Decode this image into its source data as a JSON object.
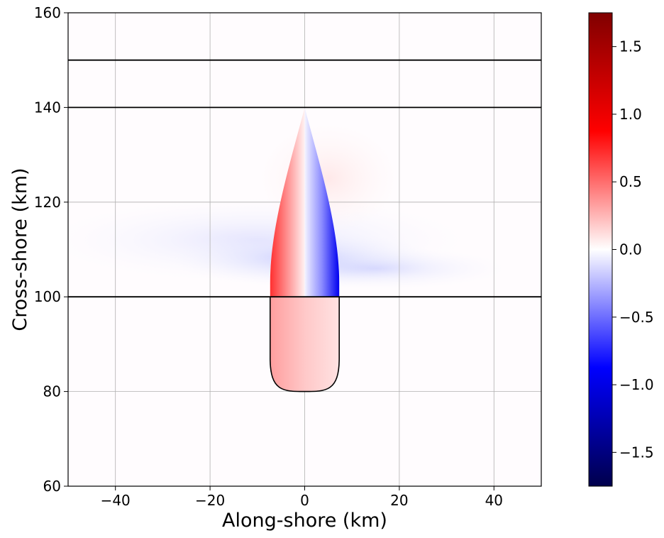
{
  "chart_data": {
    "type": "heatmap",
    "title": "",
    "xlabel": "Along-shore (km)",
    "ylabel": "Cross-shore (km)",
    "xlim": [
      -50,
      50
    ],
    "ylim": [
      60,
      160
    ],
    "x_ticks": [
      {
        "value": -40,
        "label": "−40"
      },
      {
        "value": -20,
        "label": "−20"
      },
      {
        "value": 0,
        "label": "0"
      },
      {
        "value": 20,
        "label": "20"
      },
      {
        "value": 40,
        "label": "40"
      }
    ],
    "y_ticks": [
      {
        "value": 60,
        "label": "60"
      },
      {
        "value": 80,
        "label": "80"
      },
      {
        "value": 100,
        "label": "100"
      },
      {
        "value": 120,
        "label": "120"
      },
      {
        "value": 140,
        "label": "140"
      },
      {
        "value": 160,
        "label": "160"
      }
    ],
    "grid": true,
    "horizontal_lines": [
      100,
      140,
      150
    ],
    "colormap": "seismic",
    "colorbar": {
      "range": [
        -1.75,
        1.75
      ],
      "ticks": [
        {
          "value": 1.5,
          "label": "1.5"
        },
        {
          "value": 1.0,
          "label": "1.0"
        },
        {
          "value": 0.5,
          "label": "0.5"
        },
        {
          "value": 0.0,
          "label": "0.0"
        },
        {
          "value": -0.5,
          "label": "−0.5"
        },
        {
          "value": -1.0,
          "label": "−1.0"
        },
        {
          "value": -1.5,
          "label": "−1.5"
        }
      ]
    },
    "body_outline": {
      "half_width": 7.3,
      "tip_y": 140,
      "shoulder_y": 103,
      "base_y": 80,
      "corner_y": 87
    },
    "colors": {
      "positive": "#ff0000",
      "negative": "#0000ff",
      "zero": "#ffffff"
    }
  }
}
